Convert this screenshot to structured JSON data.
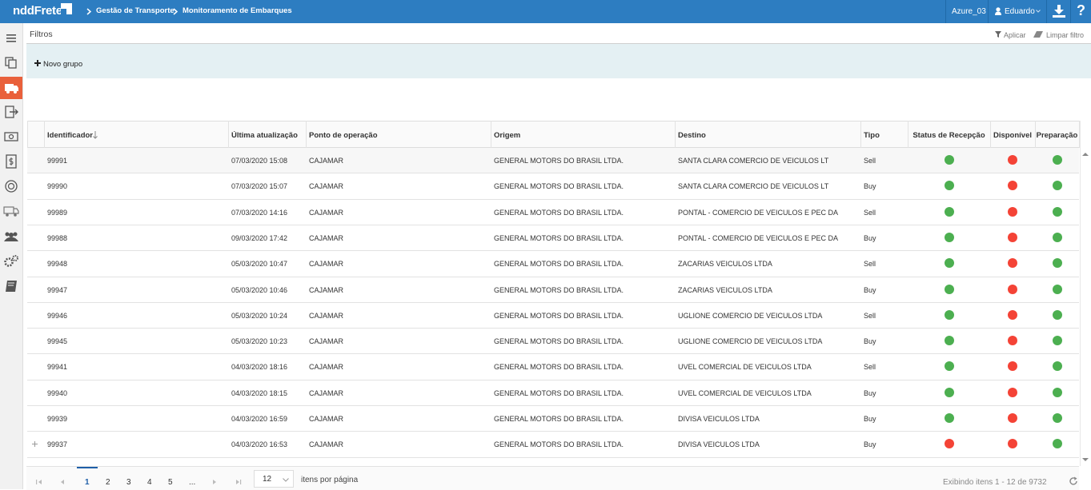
{
  "header": {
    "logo": "nddFrete",
    "breadcrumbs": [
      "Gestão de Transporte",
      "Monitoramento de Embarques"
    ],
    "environment": "Azure_03",
    "user": "Eduardo",
    "help": "?"
  },
  "filters": {
    "title": "Filtros",
    "apply": "Aplicar",
    "clear": "Limpar filtro",
    "new_group": "Novo grupo"
  },
  "table": {
    "columns": [
      "Identificador",
      "Última atualização",
      "Ponto de operação",
      "Origem",
      "Destino",
      "Tipo",
      "Status de Recepção",
      "Disponível",
      "Preparação"
    ],
    "rows": [
      {
        "id": "99991",
        "updated": "07/03/2020 15:08",
        "point": "CAJAMAR",
        "origin": "GENERAL MOTORS DO BRASIL LTDA.",
        "destination": "SANTA CLARA COMERCIO DE VEICULOS LT",
        "type": "Sell",
        "status": [
          "#4caf50",
          "#f44336",
          "#4caf50"
        ]
      },
      {
        "id": "99990",
        "updated": "07/03/2020 15:07",
        "point": "CAJAMAR",
        "origin": "GENERAL MOTORS DO BRASIL LTDA.",
        "destination": "SANTA CLARA COMERCIO DE VEICULOS LT",
        "type": "Buy",
        "status": [
          "#4caf50",
          "#f44336",
          "#4caf50"
        ]
      },
      {
        "id": "99989",
        "updated": "07/03/2020 14:16",
        "point": "CAJAMAR",
        "origin": "GENERAL MOTORS DO BRASIL LTDA.",
        "destination": "PONTAL - COMERCIO DE VEICULOS E PEC DA",
        "type": "Sell",
        "status": [
          "#4caf50",
          "#f44336",
          "#4caf50"
        ]
      },
      {
        "id": "99988",
        "updated": "09/03/2020 17:42",
        "point": "CAJAMAR",
        "origin": "GENERAL MOTORS DO BRASIL LTDA.",
        "destination": "PONTAL - COMERCIO DE VEICULOS E PEC DA",
        "type": "Buy",
        "status": [
          "#4caf50",
          "#f44336",
          "#4caf50"
        ]
      },
      {
        "id": "99948",
        "updated": "05/03/2020 10:47",
        "point": "CAJAMAR",
        "origin": "GENERAL MOTORS DO BRASIL LTDA.",
        "destination": "ZACARIAS VEICULOS LTDA",
        "type": "Sell",
        "status": [
          "#4caf50",
          "#f44336",
          "#4caf50"
        ]
      },
      {
        "id": "99947",
        "updated": "05/03/2020 10:46",
        "point": "CAJAMAR",
        "origin": "GENERAL MOTORS DO BRASIL LTDA.",
        "destination": "ZACARIAS VEICULOS LTDA",
        "type": "Buy",
        "status": [
          "#4caf50",
          "#f44336",
          "#4caf50"
        ]
      },
      {
        "id": "99946",
        "updated": "05/03/2020 10:24",
        "point": "CAJAMAR",
        "origin": "GENERAL MOTORS DO BRASIL LTDA.",
        "destination": "UGLIONE COMERCIO DE VEICULOS LTDA",
        "type": "Sell",
        "status": [
          "#4caf50",
          "#f44336",
          "#4caf50"
        ]
      },
      {
        "id": "99945",
        "updated": "05/03/2020 10:23",
        "point": "CAJAMAR",
        "origin": "GENERAL MOTORS DO BRASIL LTDA.",
        "destination": "UGLIONE COMERCIO DE VEICULOS LTDA",
        "type": "Buy",
        "status": [
          "#4caf50",
          "#f44336",
          "#4caf50"
        ]
      },
      {
        "id": "99941",
        "updated": "04/03/2020 18:16",
        "point": "CAJAMAR",
        "origin": "GENERAL MOTORS DO BRASIL LTDA.",
        "destination": "UVEL COMERCIAL DE VEICULOS LTDA",
        "type": "Sell",
        "status": [
          "#4caf50",
          "#f44336",
          "#4caf50"
        ]
      },
      {
        "id": "99940",
        "updated": "04/03/2020 18:15",
        "point": "CAJAMAR",
        "origin": "GENERAL MOTORS DO BRASIL LTDA.",
        "destination": "UVEL COMERCIAL DE VEICULOS LTDA",
        "type": "Buy",
        "status": [
          "#4caf50",
          "#f44336",
          "#4caf50"
        ]
      },
      {
        "id": "99939",
        "updated": "04/03/2020 16:59",
        "point": "CAJAMAR",
        "origin": "GENERAL MOTORS DO BRASIL LTDA.",
        "destination": "DIVISA VEICULOS LTDA",
        "type": "Buy",
        "status": [
          "#4caf50",
          "#f44336",
          "#4caf50"
        ]
      },
      {
        "id": "99937",
        "updated": "04/03/2020 16:53",
        "point": "CAJAMAR",
        "origin": "GENERAL MOTORS DO BRASIL LTDA.",
        "destination": "DIVISA VEICULOS LTDA",
        "type": "Buy",
        "status": [
          "#f44336",
          "#f44336",
          "#4caf50"
        ]
      }
    ]
  },
  "pager": {
    "pages": [
      1,
      2,
      3,
      4,
      5,
      "..."
    ],
    "page_size": "12",
    "page_size_label": "itens por página",
    "summary": "Exibindo itens 1 - 12 de 9732"
  }
}
